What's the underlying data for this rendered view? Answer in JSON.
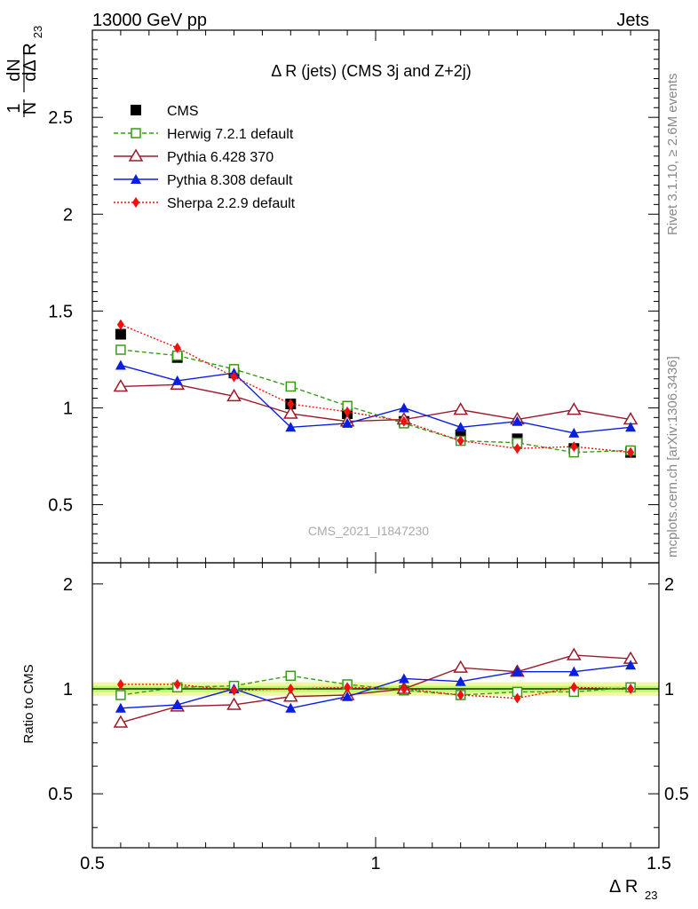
{
  "header": {
    "left": "13000 GeV pp",
    "right": "Jets"
  },
  "side_labels": {
    "rivet": "Rivet 3.1.10, ≥ 2.6M events",
    "mcplots": "mcplots.cern.ch [arXiv:1306.3436]"
  },
  "watermark": "CMS_2021_I1847230",
  "main_title": "Δ R (jets) (CMS 3j and Z+2j)",
  "colors": {
    "herwig": "#3a9a18",
    "pythia6": "#9b1b2a",
    "pythia8": "#0a1ee0",
    "sherpa": "#f01010",
    "data": "#000000",
    "band_inner": "#b6ff6a",
    "band_outer": "#f2f7a6"
  },
  "chart_data": [
    {
      "type": "line",
      "panel": "main",
      "ylabel": "1/N dN/dΔ R23",
      "xlabel": "Δ R23",
      "xlim": [
        0.5,
        1.5
      ],
      "ylim": [
        0.2,
        2.95
      ],
      "y_ticks": [
        0.5,
        1,
        1.5,
        2,
        2.5
      ],
      "y_tick_labels": [
        "0.5",
        "1",
        "1.5",
        "2",
        "2.5"
      ],
      "x": [
        0.55,
        0.65,
        0.75,
        0.85,
        0.95,
        1.05,
        1.15,
        1.25,
        1.35,
        1.45
      ],
      "series": [
        {
          "name": "CMS",
          "key": "data",
          "marker": "square",
          "values": [
            1.38,
            1.26,
            1.18,
            1.02,
            0.97,
            0.93,
            0.86,
            0.84,
            0.79,
            0.77
          ]
        },
        {
          "name": "Herwig 7.2.1 default",
          "key": "herwig",
          "marker": "open-square",
          "dash": "dashed",
          "values": [
            1.3,
            1.27,
            1.2,
            1.11,
            1.01,
            0.92,
            0.83,
            0.82,
            0.77,
            0.78
          ]
        },
        {
          "name": "Pythia 6.428 370",
          "key": "pythia6",
          "marker": "open-triangle",
          "dash": "solid",
          "values": [
            1.11,
            1.12,
            1.06,
            0.97,
            0.93,
            0.94,
            0.99,
            0.94,
            0.99,
            0.94
          ]
        },
        {
          "name": "Pythia 8.308 default",
          "key": "pythia8",
          "marker": "triangle",
          "dash": "solid",
          "values": [
            1.22,
            1.14,
            1.18,
            0.9,
            0.92,
            1.0,
            0.9,
            0.93,
            0.87,
            0.9
          ]
        },
        {
          "name": "Sherpa 2.2.9 default",
          "key": "sherpa",
          "marker": "diamond",
          "dash": "dotted",
          "values": [
            1.43,
            1.31,
            1.16,
            1.02,
            0.98,
            0.93,
            0.83,
            0.79,
            0.8,
            0.77
          ]
        }
      ]
    },
    {
      "type": "line",
      "panel": "ratio",
      "ylabel": "Ratio to CMS",
      "xlabel": "Δ R23",
      "xlim": [
        0.5,
        1.5
      ],
      "ylim": [
        0.35,
        2.3
      ],
      "y_ticks": [
        0.5,
        1,
        2
      ],
      "y_tick_labels": [
        "0.5",
        "1",
        "2"
      ],
      "x_ticks": [
        0.5,
        1,
        1.5
      ],
      "x_tick_labels": [
        "0.5",
        "1",
        "1.5"
      ],
      "band": [
        0.98,
        1.02
      ],
      "x": [
        0.55,
        0.65,
        0.75,
        0.85,
        0.95,
        1.05,
        1.15,
        1.25,
        1.35,
        1.45
      ],
      "series": [
        {
          "name": "Herwig 7.2.1 default",
          "key": "herwig",
          "marker": "open-square",
          "dash": "dashed",
          "values": [
            0.96,
            1.01,
            1.02,
            1.09,
            1.03,
            0.99,
            0.96,
            0.98,
            0.98,
            1.01
          ]
        },
        {
          "name": "Pythia 6.428 370",
          "key": "pythia6",
          "marker": "open-triangle",
          "dash": "solid",
          "values": [
            0.8,
            0.89,
            0.9,
            0.95,
            0.96,
            1.0,
            1.15,
            1.12,
            1.25,
            1.22
          ]
        },
        {
          "name": "Pythia 8.308 default",
          "key": "pythia8",
          "marker": "triangle",
          "dash": "solid",
          "values": [
            0.88,
            0.9,
            1.0,
            0.88,
            0.95,
            1.07,
            1.05,
            1.12,
            1.12,
            1.17
          ]
        },
        {
          "name": "Sherpa 2.2.9 default",
          "key": "sherpa",
          "marker": "diamond",
          "dash": "dotted",
          "values": [
            1.03,
            1.03,
            0.99,
            1.0,
            1.01,
            1.0,
            0.96,
            0.94,
            1.01,
            1.0
          ]
        }
      ]
    }
  ]
}
